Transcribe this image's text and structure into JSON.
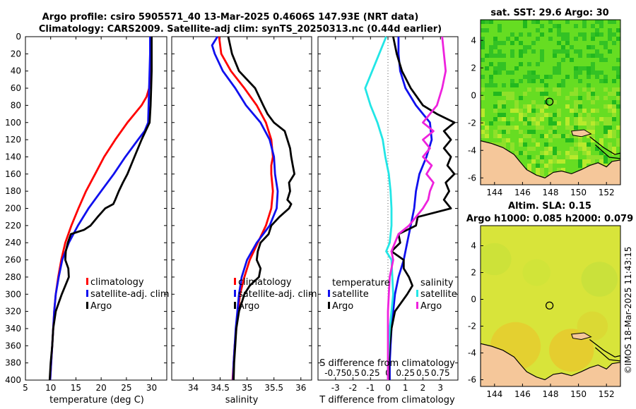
{
  "header": {
    "title_line1": "Argo profile: csiro 5905571_40 13-Mar-2025 0.4606S 147.93E (NRT data)",
    "title_line2": "Climatology: CARS2009. Satellite-adj clim: synTS_20250313.nc (0.44d earlier)"
  },
  "colors": {
    "climatology": "#ff0000",
    "satellite": "#1010ee",
    "argo": "#000000",
    "sal_satellite": "#22e6e6",
    "sal_argo": "#ee22dd",
    "land": "#f5c79a",
    "sst_ocean": "#66dd22",
    "sla_ocean": "#d8e43a"
  },
  "chart_data": [
    {
      "type": "line",
      "panel": "temperature",
      "xlabel": "temperature (deg C)",
      "ylabel": "",
      "xlim": [
        5,
        33
      ],
      "ylim": [
        400,
        0
      ],
      "xticks": [
        5,
        10,
        15,
        20,
        25,
        30
      ],
      "yticks": [
        0,
        20,
        40,
        60,
        80,
        100,
        120,
        140,
        160,
        180,
        200,
        220,
        240,
        260,
        280,
        300,
        320,
        340,
        360,
        380,
        400
      ],
      "legend": {
        "position": "lower-right",
        "entries": [
          "climatology",
          "satellite-adj. clim",
          "Argo"
        ]
      },
      "series": [
        {
          "name": "climatology",
          "color_key": "climatology",
          "depth": [
            0,
            20,
            40,
            60,
            70,
            80,
            90,
            100,
            120,
            140,
            160,
            180,
            200,
            220,
            240,
            260,
            280,
            300,
            320,
            340,
            360,
            380,
            400
          ],
          "values": [
            29.9,
            29.9,
            29.8,
            29.5,
            29.0,
            28.0,
            26.6,
            25.2,
            22.8,
            20.6,
            18.8,
            17.0,
            15.5,
            14.1,
            12.9,
            12.1,
            11.5,
            11.0,
            10.7,
            10.5,
            10.3,
            10.1,
            9.9
          ]
        },
        {
          "name": "satellite-adj. clim",
          "color_key": "satellite",
          "depth": [
            0,
            20,
            40,
            60,
            80,
            100,
            110,
            120,
            140,
            160,
            180,
            200,
            220,
            240,
            260,
            280,
            300,
            320,
            340,
            360,
            380,
            400
          ],
          "values": [
            29.7,
            29.7,
            29.6,
            29.5,
            29.4,
            29.3,
            28.6,
            27.3,
            24.8,
            22.5,
            20.0,
            17.5,
            15.4,
            13.6,
            12.3,
            11.6,
            11.0,
            10.7,
            10.5,
            10.3,
            10.1,
            9.9
          ]
        },
        {
          "name": "Argo",
          "color_key": "argo",
          "depth": [
            0,
            20,
            40,
            60,
            80,
            100,
            110,
            120,
            140,
            160,
            170,
            180,
            190,
            195,
            200,
            210,
            220,
            225,
            230,
            240,
            250,
            260,
            270,
            280,
            290,
            300,
            310,
            320,
            340,
            360,
            380,
            400
          ],
          "values": [
            30.0,
            30.0,
            30.0,
            29.9,
            29.8,
            29.6,
            28.8,
            28.0,
            26.6,
            25.2,
            24.3,
            23.5,
            22.8,
            22.4,
            20.8,
            19.3,
            17.9,
            16.6,
            14.0,
            13.4,
            13.0,
            12.9,
            13.5,
            13.6,
            12.9,
            12.2,
            11.6,
            11.0,
            10.5,
            10.3,
            10.0,
            9.8
          ]
        }
      ]
    },
    {
      "type": "line",
      "panel": "salinity",
      "xlabel": "salinity",
      "xlim": [
        33.6,
        36.2
      ],
      "ylim": [
        400,
        0
      ],
      "xticks": [
        34,
        34.5,
        35,
        35.5,
        36
      ],
      "xticklabels": [
        "34",
        "34.5",
        "35",
        "35.5",
        "36"
      ],
      "legend": {
        "position": "lower-right",
        "entries": [
          "climatology",
          "satellite-adj. clim",
          "Argo"
        ]
      },
      "series": [
        {
          "name": "climatology",
          "color_key": "climatology",
          "depth": [
            0,
            20,
            40,
            60,
            80,
            100,
            120,
            140,
            150,
            160,
            180,
            200,
            220,
            240,
            260,
            280,
            300,
            320,
            340,
            360,
            380,
            400
          ],
          "values": [
            34.48,
            34.52,
            34.7,
            34.95,
            35.18,
            35.35,
            35.45,
            35.48,
            35.45,
            35.45,
            35.48,
            35.45,
            35.35,
            35.2,
            35.05,
            34.95,
            34.87,
            34.83,
            34.8,
            34.77,
            34.75,
            34.73
          ]
        },
        {
          "name": "satellite-adj. clim",
          "color_key": "satellite",
          "depth": [
            0,
            10,
            20,
            40,
            60,
            80,
            100,
            120,
            140,
            160,
            180,
            200,
            220,
            240,
            260,
            280,
            300,
            320,
            340,
            360,
            380,
            400
          ],
          "values": [
            34.45,
            34.35,
            34.4,
            34.55,
            34.78,
            34.98,
            35.25,
            35.42,
            35.5,
            35.52,
            35.57,
            35.55,
            35.42,
            35.18,
            35.0,
            34.9,
            34.85,
            34.82,
            34.79,
            34.77,
            34.75,
            34.74
          ]
        },
        {
          "name": "Argo",
          "color_key": "argo",
          "depth": [
            0,
            20,
            40,
            60,
            80,
            90,
            100,
            110,
            120,
            130,
            140,
            150,
            160,
            170,
            180,
            190,
            195,
            200,
            210,
            220,
            230,
            240,
            250,
            260,
            270,
            280,
            290,
            300,
            320,
            340,
            360,
            380,
            400
          ],
          "values": [
            34.65,
            34.72,
            34.85,
            35.15,
            35.3,
            35.38,
            35.5,
            35.7,
            35.75,
            35.8,
            35.82,
            35.85,
            35.88,
            35.78,
            35.8,
            35.75,
            35.82,
            35.78,
            35.6,
            35.45,
            35.4,
            35.25,
            35.2,
            35.18,
            35.25,
            35.22,
            35.05,
            34.95,
            34.85,
            34.8,
            34.78,
            34.76,
            34.75
          ]
        }
      ]
    },
    {
      "type": "line",
      "panel": "difference",
      "xlabel": "T difference from climatology",
      "xlabel_top": "S difference from climatology",
      "xlim": [
        -4,
        4
      ],
      "ylim": [
        400,
        0
      ],
      "xticks": [
        -3,
        -2,
        -1,
        0,
        1,
        2,
        3
      ],
      "xticklabels": [
        "-3",
        "-2",
        "-1",
        "0",
        "1",
        "2",
        "3"
      ],
      "top_ticks": [
        "-0.75",
        "0.5",
        "0.25",
        "0",
        "0.25",
        "0.5",
        "0.75"
      ],
      "legend": {
        "position": "lower-center",
        "temperature_title": "temperature",
        "salinity_title": "salinity",
        "entries": [
          "satellite",
          "Argo",
          "satellite",
          "Argo"
        ]
      },
      "series": [
        {
          "name": "T satellite",
          "color_key": "satellite",
          "depth": [
            0,
            20,
            40,
            60,
            80,
            100,
            120,
            140,
            160,
            180,
            200,
            220,
            240,
            260,
            280,
            300,
            320,
            340,
            360,
            380,
            400
          ],
          "values": [
            0.6,
            0.6,
            0.7,
            1.0,
            1.6,
            2.4,
            2.5,
            2.2,
            1.8,
            1.6,
            1.5,
            1.3,
            1.1,
            0.9,
            0.6,
            0.4,
            0.3,
            0.2,
            0.15,
            0.1,
            0.1
          ]
        },
        {
          "name": "T Argo",
          "color_key": "argo",
          "depth": [
            0,
            20,
            40,
            60,
            80,
            90,
            100,
            110,
            120,
            130,
            140,
            150,
            160,
            170,
            180,
            190,
            200,
            210,
            220,
            230,
            240,
            250,
            260,
            270,
            280,
            290,
            300,
            320,
            340,
            360,
            380,
            400
          ],
          "values": [
            0.3,
            0.5,
            0.8,
            1.3,
            2.0,
            2.8,
            3.8,
            3.2,
            3.6,
            3.2,
            3.6,
            3.4,
            3.8,
            3.3,
            3.5,
            3.2,
            3.6,
            1.7,
            1.6,
            0.6,
            0.7,
            0.2,
            0.9,
            0.9,
            1.2,
            1.4,
            1.1,
            0.4,
            0.2,
            0.1,
            0.05,
            0.05
          ]
        },
        {
          "name": "S satellite",
          "color_key": "sal_satellite",
          "depth": [
            0,
            20,
            40,
            60,
            80,
            100,
            120,
            140,
            160,
            180,
            200,
            220,
            240,
            250,
            260,
            280,
            300,
            320,
            340,
            360,
            380,
            400
          ],
          "values": [
            -0.1,
            -0.5,
            -0.9,
            -1.3,
            -1.0,
            -0.6,
            -0.3,
            -0.15,
            0.05,
            0.15,
            0.2,
            0.2,
            0.1,
            -0.1,
            0.2,
            0.25,
            0.3,
            0.2,
            0.1,
            0.05,
            0.0,
            0.0
          ]
        },
        {
          "name": "S Argo",
          "color_key": "sal_argo",
          "depth": [
            0,
            20,
            40,
            60,
            80,
            90,
            100,
            110,
            120,
            130,
            140,
            150,
            160,
            170,
            180,
            190,
            200,
            210,
            220,
            230,
            240,
            250,
            260,
            280,
            300,
            320,
            340,
            360,
            380,
            400
          ],
          "values": [
            3.1,
            3.2,
            3.3,
            3.1,
            2.8,
            2.4,
            2.0,
            2.6,
            2.0,
            2.4,
            2.0,
            2.5,
            2.2,
            2.6,
            2.4,
            2.3,
            2.0,
            1.6,
            1.2,
            0.6,
            0.4,
            0.2,
            0.3,
            0.1,
            0.05,
            0.0,
            0.0,
            0.0,
            0.0,
            0.0
          ]
        }
      ]
    },
    {
      "type": "heatmap",
      "panel": "sst-map",
      "title": "sat. SST: 29.6 Argo: 30",
      "xlim": [
        143,
        153
      ],
      "ylim": [
        -6.5,
        5.5
      ],
      "xticks": [
        144,
        146,
        148,
        150,
        152
      ],
      "yticks": [
        -6,
        -4,
        -2,
        0,
        2,
        4
      ],
      "marker": {
        "lon": 147.93,
        "lat": -0.46
      }
    },
    {
      "type": "heatmap",
      "panel": "sla-map",
      "title_line1": "Altim. SLA: 0.15",
      "title_line2": "Argo h1000: 0.085 h2000: 0.079",
      "xlim": [
        143,
        153
      ],
      "ylim": [
        -6.5,
        5.5
      ],
      "xticks": [
        144,
        146,
        148,
        150,
        152
      ],
      "yticks": [
        -6,
        -4,
        -2,
        0,
        2,
        4
      ],
      "marker": {
        "lon": 147.93,
        "lat": -0.46
      }
    }
  ],
  "credit": "©IMOS 18-Mar-2025 11:43:15"
}
